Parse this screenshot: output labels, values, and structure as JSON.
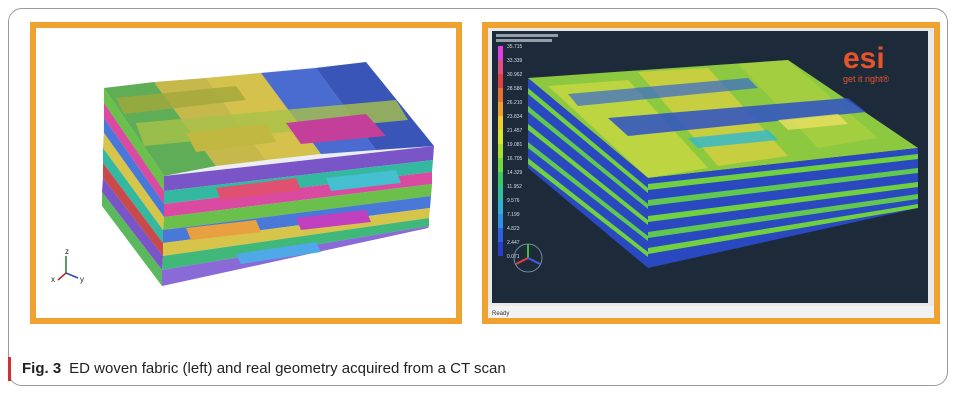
{
  "caption": {
    "label": "Fig. 3",
    "text": "ED woven fabric (left) and real geometry acquired from a CT scan"
  },
  "left_panel": {
    "axis_triad": {
      "z": "z",
      "x": "x",
      "y": "y"
    }
  },
  "right_panel": {
    "logo": {
      "brand": "esi",
      "tagline": "get it right®"
    },
    "colorbar_values": [
      "35.715",
      "33.339",
      "30.962",
      "28.586",
      "26.210",
      "23.834",
      "21.457",
      "19.081",
      "16.705",
      "14.329",
      "11.952",
      "9.576",
      "7.199",
      "4.823",
      "2.447",
      "0.071"
    ],
    "status_text": "Ready",
    "colors": {
      "background": "#1c2a3a",
      "frame": "#f0a231"
    }
  }
}
